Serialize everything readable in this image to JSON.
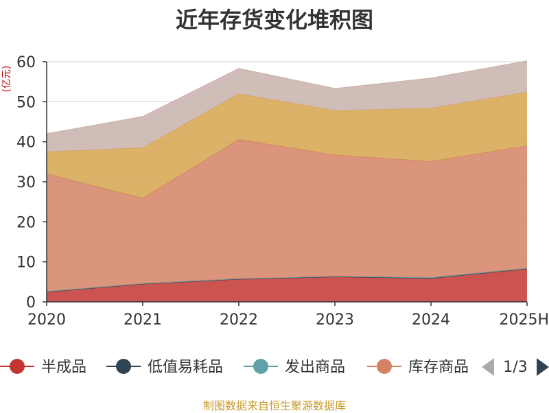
{
  "title": "近年存货变化堆积图",
  "source_note": "制图数据来自恒生聚源数据库",
  "legend_pager": {
    "text": "1/3",
    "prev_color": "#aaaaaa",
    "next_color": "#2f4554"
  },
  "chart_data": {
    "type": "area",
    "stacked": true,
    "title": "近年存货变化堆积图",
    "ylabel": "(亿元)",
    "xlabel": "",
    "x": [
      "2020",
      "2021",
      "2022",
      "2023",
      "2024",
      "2025H"
    ],
    "ylim": [
      0,
      60
    ],
    "yticks": [
      0,
      10,
      20,
      30,
      40,
      50,
      60
    ],
    "grid": true,
    "legend_position": "bottom",
    "legend_visible": [
      "半成品",
      "低值易耗品",
      "发出商品",
      "库存商品"
    ],
    "series": [
      {
        "name": "半成品",
        "color": "#c23531",
        "values": [
          2.5,
          4.5,
          5.7,
          6.3,
          5.9,
          8.3
        ]
      },
      {
        "name": "低值易耗品",
        "color": "#2f4554",
        "values": [
          0.0,
          0.0,
          0.0,
          0.0,
          0.0,
          0.0
        ]
      },
      {
        "name": "发出商品",
        "color": "#61a0a8",
        "values": [
          0.1,
          0.1,
          0.1,
          0.1,
          0.2,
          0.1
        ]
      },
      {
        "name": "库存商品",
        "color": "#d48265",
        "values": [
          29.4,
          21.3,
          34.8,
          30.3,
          29.0,
          30.6
        ]
      },
      {
        "color": "#d6a44f",
        "values": [
          5.5,
          12.6,
          11.4,
          11.1,
          13.3,
          13.4
        ]
      },
      {
        "color": "#c9b1aa",
        "values": [
          4.5,
          7.8,
          6.3,
          5.5,
          7.5,
          7.8
        ]
      }
    ]
  }
}
